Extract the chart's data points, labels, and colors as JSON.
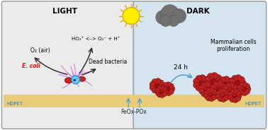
{
  "fig_width": 3.78,
  "fig_height": 1.84,
  "dpi": 100,
  "bg_color": "#ffffff",
  "left_panel_bg": "#ebebeb",
  "right_panel_bg": "#d4e5f0",
  "panel_border_color": "#999999",
  "film_color": "#e8cc7a",
  "title_light": "LIGHT",
  "title_dark": "DARK",
  "label_hdpet_left": "HDPET",
  "label_hdpet_right": "HDPET",
  "label_feox": "FeOx-POx",
  "label_ecoli": "E. coli",
  "label_o2": "O₂ (air)",
  "label_ho2": "HO₂⁺ <–> O₂⁻ + H⁺",
  "label_dead": "Dead bacteria",
  "label_24h": "24 h",
  "label_mammalian": "Mammalian cells\nproliferation",
  "sun_color": "#ffee00",
  "sun_outline": "#ddaa00",
  "cloud_color": "#707070",
  "cloud_edge": "#555555",
  "electron_color": "#66ccff",
  "ecoli_body_color": "#cc2222",
  "filament_color": "#cc55cc",
  "cell_color_dark": "#991111",
  "cell_color_light": "#cc3333",
  "cell_bump_color": "#bb2222",
  "arrow_color": "#222222",
  "blue_arrow_color": "#4499cc",
  "hdpet_text_color": "#3377bb",
  "feox_text_color": "#222222"
}
